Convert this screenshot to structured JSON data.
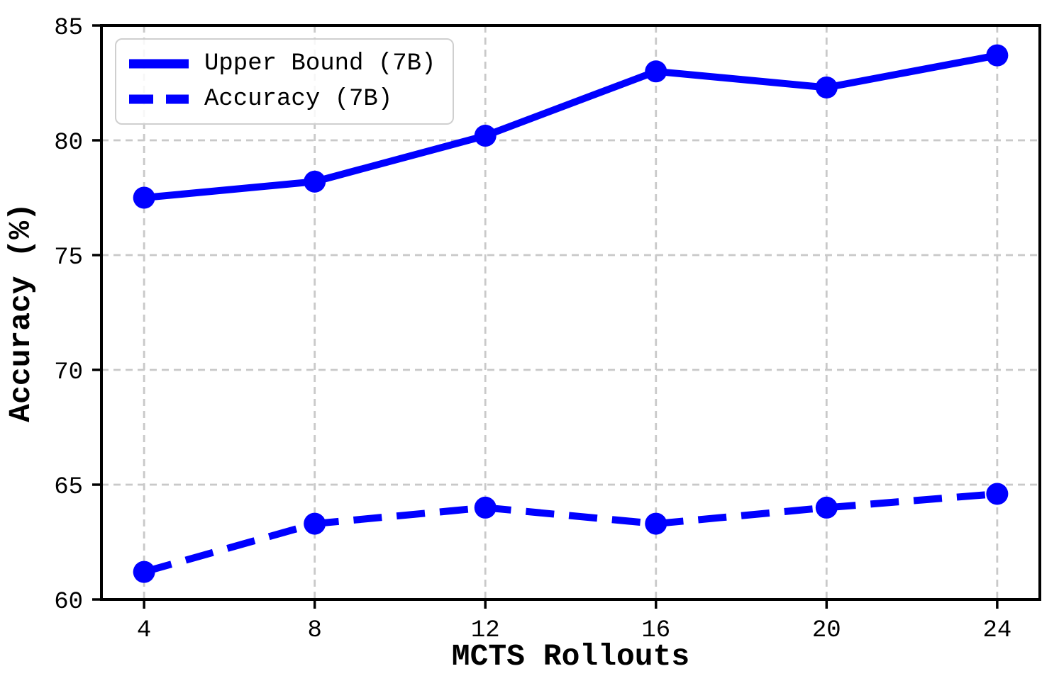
{
  "chart_data": {
    "type": "line",
    "title": "",
    "xlabel": "MCTS Rollouts",
    "ylabel": "Accuracy (%)",
    "x": [
      4,
      8,
      12,
      16,
      20,
      24
    ],
    "x_ticks": [
      4,
      8,
      12,
      16,
      20,
      24
    ],
    "y_ticks": [
      60,
      65,
      70,
      75,
      80,
      85
    ],
    "xlim": [
      3,
      25
    ],
    "ylim": [
      60,
      85
    ],
    "grid": true,
    "grid_style": "dashed",
    "grid_color": "#c9c9c9",
    "line_color": "#0000ff",
    "legend_position": "upper left",
    "series": [
      {
        "name": "Upper Bound (7B)",
        "line_style": "solid",
        "marker": "circle",
        "values": [
          77.5,
          78.2,
          80.2,
          83.0,
          82.3,
          83.7
        ]
      },
      {
        "name": "Accuracy (7B)",
        "line_style": "dashed",
        "marker": "circle",
        "values": [
          61.2,
          63.3,
          64.0,
          63.3,
          64.0,
          64.6
        ]
      }
    ]
  }
}
